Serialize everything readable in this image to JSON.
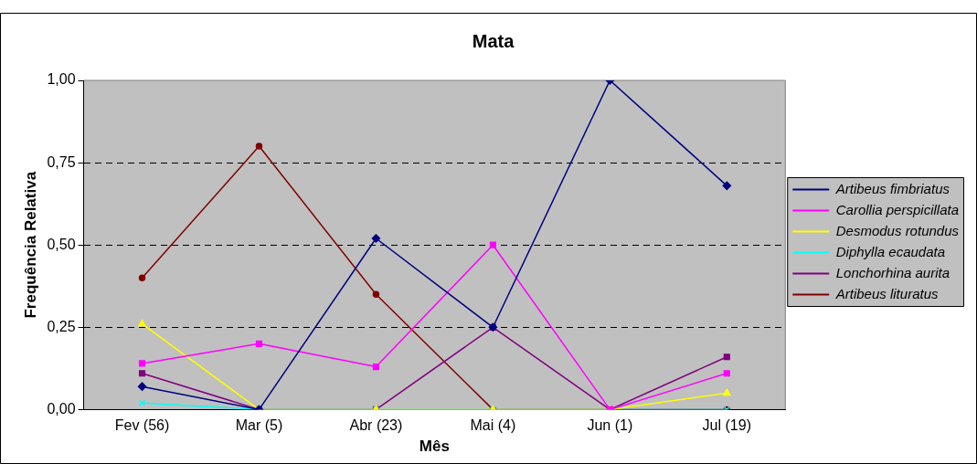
{
  "chart_data": {
    "type": "line",
    "title": "Mata",
    "xlabel": "Mês",
    "ylabel": "Frequência Relativa",
    "categories": [
      "Fev (56)",
      "Mar (5)",
      "Abr (23)",
      "Mai (4)",
      "Jun (1)",
      "Jul (19)"
    ],
    "ylim": [
      0,
      1
    ],
    "yticks": [
      {
        "value": 0,
        "label": "0,00"
      },
      {
        "value": 0.25,
        "label": "0,25"
      },
      {
        "value": 0.5,
        "label": "0,50"
      },
      {
        "value": 0.75,
        "label": "0,75"
      },
      {
        "value": 1,
        "label": "1,00"
      }
    ],
    "grid": "y",
    "legend": "right",
    "line_style": "solid",
    "series": [
      {
        "name": "Artibeus fimbriatus",
        "color": "#000080",
        "marker": "diamond",
        "values": [
          0.07,
          0,
          0.52,
          0.25,
          1,
          0.68
        ]
      },
      {
        "name": "Carollia perspicillata",
        "color": "#ff00ff",
        "marker": "square",
        "values": [
          0.14,
          0.2,
          0.13,
          0.5,
          0,
          0.11
        ]
      },
      {
        "name": "Desmodus rotundus",
        "color": "#ffff00",
        "marker": "triangle",
        "values": [
          0.26,
          0,
          0,
          0,
          0,
          0.05
        ]
      },
      {
        "name": "Diphylla ecaudata",
        "color": "#00ffff",
        "marker": "cross",
        "values": [
          0.02,
          0,
          0,
          0,
          0,
          0
        ]
      },
      {
        "name": "Lonchorhina aurita",
        "color": "#800080",
        "marker": "square",
        "values": [
          0.11,
          0,
          0,
          0.25,
          0,
          0.16
        ]
      },
      {
        "name": "Artibeus lituratus",
        "color": "#800000",
        "marker": "circle",
        "values": [
          0.4,
          0.8,
          0.35,
          0,
          0,
          0
        ]
      }
    ]
  }
}
